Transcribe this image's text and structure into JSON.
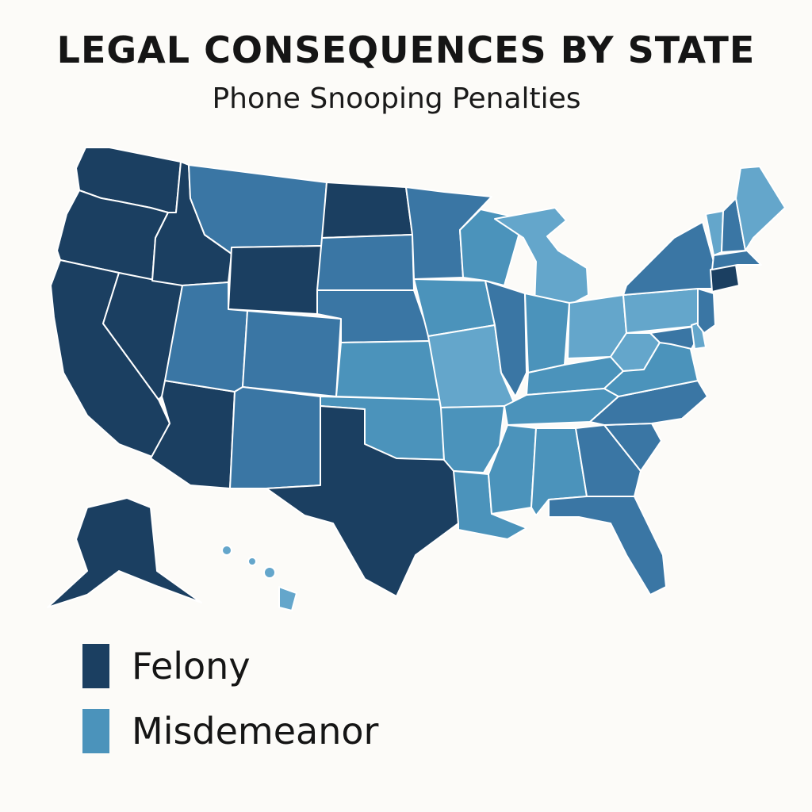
{
  "title": "LEGAL CONSEQUENCES BY STATE",
  "subtitle": "Phone Snooping Penalties",
  "colors": {
    "background": "#fcfbf8",
    "felony": "#1b3f61",
    "dark": "#2e6491",
    "medium": "#3a76a4",
    "misdemeanor": "#4b93bb",
    "light": "#64a6cb",
    "border": "#ffffff"
  },
  "legend": {
    "items": [
      {
        "label": "Felony",
        "color": "#1b3f61"
      },
      {
        "label": "Misdemeanor",
        "color": "#4b93bb"
      }
    ]
  },
  "states": [
    {
      "name": "washington",
      "category": "felony"
    },
    {
      "name": "oregon",
      "category": "felony"
    },
    {
      "name": "california",
      "category": "felony"
    },
    {
      "name": "nevada",
      "category": "felony"
    },
    {
      "name": "idaho",
      "category": "felony"
    },
    {
      "name": "arizona",
      "category": "felony"
    },
    {
      "name": "wyoming",
      "category": "felony"
    },
    {
      "name": "north-dakota",
      "category": "felony"
    },
    {
      "name": "texas",
      "category": "felony"
    },
    {
      "name": "alaska",
      "category": "felony"
    },
    {
      "name": "connecticut",
      "category": "felony"
    },
    {
      "name": "montana",
      "category": "medium"
    },
    {
      "name": "utah",
      "category": "medium"
    },
    {
      "name": "colorado",
      "category": "medium"
    },
    {
      "name": "new-mexico",
      "category": "medium"
    },
    {
      "name": "south-dakota",
      "category": "medium"
    },
    {
      "name": "nebraska",
      "category": "medium"
    },
    {
      "name": "minnesota",
      "category": "medium"
    },
    {
      "name": "illinois",
      "category": "medium"
    },
    {
      "name": "new-york",
      "category": "medium"
    },
    {
      "name": "georgia",
      "category": "medium"
    },
    {
      "name": "south-carolina",
      "category": "medium"
    },
    {
      "name": "north-carolina",
      "category": "medium"
    },
    {
      "name": "florida",
      "category": "medium"
    },
    {
      "name": "new-jersey",
      "category": "medium"
    },
    {
      "name": "maryland",
      "category": "medium"
    },
    {
      "name": "massachusetts",
      "category": "medium"
    },
    {
      "name": "new-hampshire",
      "category": "medium"
    },
    {
      "name": "kansas",
      "category": "misdemeanor"
    },
    {
      "name": "oklahoma",
      "category": "misdemeanor"
    },
    {
      "name": "iowa",
      "category": "misdemeanor"
    },
    {
      "name": "missouri",
      "category": "light"
    },
    {
      "name": "arkansas",
      "category": "misdemeanor"
    },
    {
      "name": "louisiana",
      "category": "misdemeanor"
    },
    {
      "name": "wisconsin",
      "category": "misdemeanor"
    },
    {
      "name": "michigan",
      "category": "light"
    },
    {
      "name": "indiana",
      "category": "misdemeanor"
    },
    {
      "name": "ohio",
      "category": "light"
    },
    {
      "name": "kentucky",
      "category": "misdemeanor"
    },
    {
      "name": "tennessee",
      "category": "misdemeanor"
    },
    {
      "name": "mississippi",
      "category": "misdemeanor"
    },
    {
      "name": "alabama",
      "category": "misdemeanor"
    },
    {
      "name": "west-virginia",
      "category": "light"
    },
    {
      "name": "virginia",
      "category": "misdemeanor"
    },
    {
      "name": "pennsylvania",
      "category": "light"
    },
    {
      "name": "vermont",
      "category": "light"
    },
    {
      "name": "maine",
      "category": "light"
    },
    {
      "name": "delaware",
      "category": "light"
    },
    {
      "name": "hawaii",
      "category": "light"
    }
  ]
}
